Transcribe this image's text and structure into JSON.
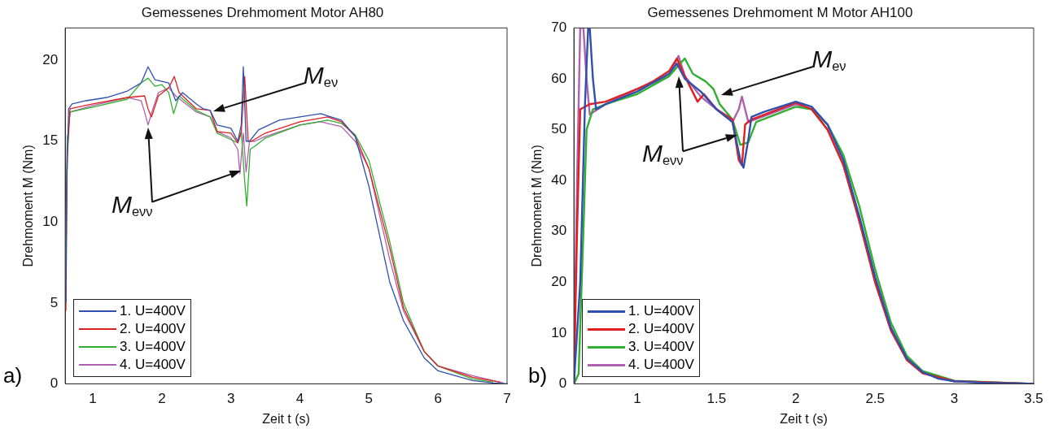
{
  "chart_data": [
    {
      "type": "line",
      "title": "Gemessenes Drehmoment Motor AH80",
      "xlabel": "Zeit t (s)",
      "ylabel": "Drehmoment M (Nm)",
      "xlim": [
        0.6,
        7
      ],
      "xticks": [
        1,
        2,
        3,
        4,
        5,
        6,
        7
      ],
      "ylim": [
        0,
        22
      ],
      "yticks": [
        0,
        5,
        10,
        15,
        20
      ],
      "legend": "bottom left",
      "annotations": [
        "M$_{eν}$",
        "M$_{eνν}$",
        "a)"
      ],
      "series": [
        {
          "name": "1. U=400V",
          "color": "#3050b0",
          "x": [
            0.61,
            0.62,
            0.65,
            0.7,
            0.9,
            1.2,
            1.5,
            1.7,
            1.8,
            1.9,
            2.0,
            2.1,
            2.2,
            2.3,
            2.5,
            2.6,
            2.7,
            2.8,
            3.0,
            3.1,
            3.15,
            3.18,
            3.22,
            3.27,
            3.4,
            3.7,
            4.0,
            4.3,
            4.6,
            4.8,
            5.0,
            5.3,
            5.5,
            5.8,
            6.0,
            6.5,
            6.8,
            7.0
          ],
          "values": [
            5,
            12,
            17.0,
            17.3,
            17.5,
            17.7,
            18.1,
            18.6,
            19.6,
            18.8,
            18.7,
            18.6,
            17.5,
            18.0,
            17.3,
            17.0,
            16.9,
            16.0,
            15.8,
            15.0,
            16.0,
            19.6,
            15.0,
            15.0,
            15.7,
            16.3,
            16.5,
            16.7,
            16.3,
            15.3,
            12.2,
            6.3,
            3.9,
            1.6,
            0.8,
            0.2,
            0.05,
            0
          ]
        },
        {
          "name": "2. U=400V",
          "color": "#e02020",
          "x": [
            0.61,
            0.63,
            0.67,
            1.0,
            1.5,
            1.75,
            1.8,
            1.85,
            1.95,
            2.1,
            2.18,
            2.25,
            2.5,
            2.7,
            2.8,
            3.0,
            3.1,
            3.15,
            3.2,
            3.25,
            3.3,
            3.5,
            4.0,
            4.4,
            4.6,
            4.8,
            5.0,
            5.3,
            5.5,
            5.8,
            6.0,
            6.5,
            6.9
          ],
          "values": [
            4.5,
            14,
            17.0,
            17.3,
            17.7,
            17.8,
            17.0,
            16.5,
            17.8,
            18.3,
            19.0,
            18.0,
            17.0,
            16.9,
            15.6,
            15.5,
            14.9,
            15.5,
            19.0,
            15.0,
            15.0,
            15.5,
            16.2,
            16.5,
            16.2,
            15.3,
            13.3,
            8.4,
            4.7,
            2.0,
            1.1,
            0.4,
            0.1
          ]
        },
        {
          "name": "3. U=400V",
          "color": "#30b030",
          "x": [
            0.6,
            0.63,
            0.67,
            1.0,
            1.5,
            1.7,
            1.8,
            1.9,
            2.0,
            2.1,
            2.17,
            2.25,
            2.5,
            2.7,
            2.8,
            3.0,
            3.1,
            3.15,
            3.2,
            3.23,
            3.28,
            3.35,
            3.5,
            4.0,
            4.4,
            4.6,
            4.8,
            5.0,
            5.3,
            5.5,
            5.8,
            6.0,
            6.5,
            6.8
          ],
          "values": [
            7,
            15,
            16.8,
            17.1,
            17.6,
            18.6,
            18.9,
            18.4,
            18.5,
            18.0,
            16.7,
            17.8,
            16.9,
            16.5,
            15.5,
            15.1,
            14.9,
            15.6,
            12.5,
            11.0,
            14.5,
            14.7,
            15.2,
            16.0,
            16.3,
            16.1,
            15.4,
            13.8,
            8.8,
            5.0,
            2.0,
            1.1,
            0.3,
            0.1
          ]
        },
        {
          "name": "4. U=400V",
          "color": "#b060b0",
          "x": [
            0.6,
            0.63,
            0.67,
            1.0,
            1.5,
            1.7,
            1.75,
            1.8,
            1.87,
            1.95,
            2.1,
            2.2,
            2.5,
            2.7,
            2.8,
            3.0,
            3.1,
            3.13,
            3.18,
            3.22,
            3.27,
            3.35,
            3.5,
            4.0,
            4.3,
            4.6,
            4.8,
            5.0,
            5.3,
            5.5,
            5.8,
            6.0,
            6.5,
            6.95
          ],
          "values": [
            6,
            15,
            16.8,
            17.2,
            17.7,
            17.5,
            16.8,
            16.0,
            17.0,
            18.0,
            18.3,
            17.8,
            16.8,
            16.5,
            15.6,
            15.2,
            14.5,
            13.0,
            15.5,
            13.1,
            15.0,
            15.0,
            15.3,
            16.0,
            16.2,
            15.9,
            15.0,
            13.3,
            7.7,
            4.5,
            2.0,
            1.1,
            0.5,
            0.05
          ]
        }
      ]
    },
    {
      "type": "line",
      "title": "Gemessenes Drehmoment M Motor AH100",
      "xlabel": "Zeit t (s)",
      "ylabel": "Drehmoment M (Nm)",
      "xlim": [
        0.6,
        3.5
      ],
      "xticks": [
        1,
        1.5,
        2,
        2.5,
        3,
        3.5
      ],
      "ylim": [
        0,
        70
      ],
      "yticks": [
        0,
        10,
        20,
        30,
        40,
        50,
        60,
        70
      ],
      "legend": "bottom left",
      "annotations": [
        "M$_{eν}$",
        "M$_{eνν}$",
        "b)"
      ],
      "series": [
        {
          "name": "1. U=400V",
          "color": "#3050b0",
          "x": [
            0.6,
            0.64,
            0.67,
            0.69,
            0.7,
            0.72,
            0.74,
            0.8,
            1.0,
            1.2,
            1.25,
            1.3,
            1.4,
            1.5,
            1.6,
            1.65,
            1.67,
            1.7,
            1.72,
            1.8,
            2.0,
            2.1,
            2.2,
            2.3,
            2.4,
            2.5,
            2.6,
            2.7,
            2.8,
            2.9,
            3.0,
            3.2,
            3.5
          ],
          "values": [
            0,
            20,
            55,
            70,
            70,
            60,
            54,
            55,
            57.5,
            61,
            63,
            60,
            57.5,
            54,
            51.5,
            44,
            42.5,
            48,
            52.5,
            53.5,
            55.5,
            54.5,
            51,
            44,
            33,
            21,
            11,
            5,
            2.3,
            1.0,
            0.5,
            0.2,
            0
          ]
        },
        {
          "name": "2. U=400V",
          "color": "#e02020",
          "x": [
            0.6,
            0.62,
            0.64,
            0.7,
            0.8,
            1.0,
            1.1,
            1.2,
            1.25,
            1.3,
            1.38,
            1.42,
            1.5,
            1.6,
            1.64,
            1.66,
            1.68,
            1.72,
            2.0,
            2.1,
            2.2,
            2.3,
            2.4,
            2.5,
            2.6,
            2.7,
            2.8,
            3.0,
            3.5
          ],
          "values": [
            0,
            30,
            54,
            55,
            55.5,
            58,
            59.5,
            61.5,
            64,
            60.5,
            55.5,
            57,
            54,
            52,
            44,
            43,
            51,
            52,
            55.3,
            54,
            50,
            43,
            32,
            20,
            10.5,
            4.7,
            2.1,
            0.5,
            0
          ]
        },
        {
          "name": "3. U=400V",
          "color": "#30b030",
          "x": [
            0.6,
            0.63,
            0.66,
            0.68,
            0.72,
            0.8,
            1.0,
            1.2,
            1.27,
            1.3,
            1.35,
            1.43,
            1.48,
            1.52,
            1.6,
            1.65,
            1.7,
            1.75,
            2.0,
            2.1,
            2.2,
            2.3,
            2.4,
            2.5,
            2.6,
            2.7,
            2.8,
            3.0,
            3.5
          ],
          "values": [
            0,
            2,
            30,
            50,
            54,
            55,
            57,
            60.5,
            63,
            64,
            61,
            59.5,
            58,
            55,
            52,
            47,
            47.5,
            51.5,
            54.5,
            54,
            51,
            45,
            35,
            22.5,
            12,
            5.5,
            2.5,
            0.6,
            0
          ]
        },
        {
          "name": "4. U=400V",
          "color": "#b060b0",
          "x": [
            0.6,
            0.62,
            0.64,
            0.66,
            0.68,
            0.7,
            0.8,
            1.0,
            1.2,
            1.26,
            1.3,
            1.4,
            1.5,
            1.6,
            1.64,
            1.66,
            1.68,
            1.7,
            2.0,
            2.1,
            2.2,
            2.3,
            2.4,
            2.5,
            2.6,
            2.7,
            2.8,
            3.0,
            3.5
          ],
          "values": [
            0,
            40,
            70,
            70,
            60,
            53,
            55,
            58,
            60.5,
            64.5,
            60.5,
            56.5,
            54,
            51.5,
            54,
            56.5,
            54,
            51.5,
            55,
            54,
            50,
            43,
            32.5,
            20,
            10.5,
            4.8,
            2.1,
            0.5,
            0
          ]
        }
      ]
    }
  ]
}
